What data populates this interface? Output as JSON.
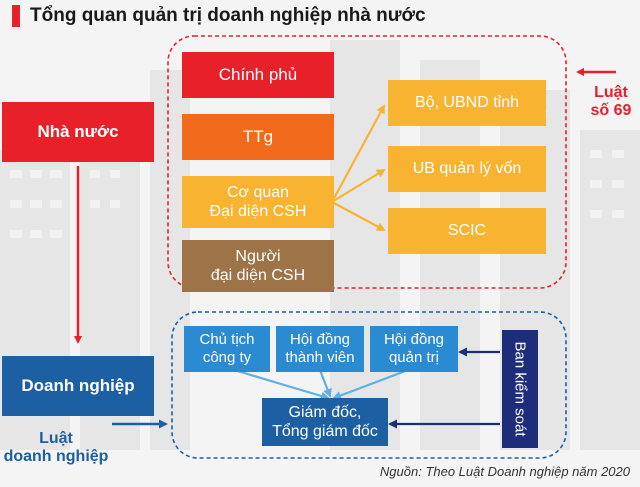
{
  "title": "Tổng quan quản trị doanh nghiệp nhà nước",
  "colors": {
    "red": "#e8202a",
    "orange_dark": "#f26a1b",
    "orange": "#f49a24",
    "yellow": "#f8b430",
    "brown": "#9e7348",
    "blue_dark": "#1d5fa3",
    "blue": "#2b8bd2",
    "navy": "#1e2d7a"
  },
  "state": {
    "label": "Nhà nước",
    "boxes": {
      "government": "Chính phủ",
      "prime_minister": "TTg",
      "owner_agency": "Cơ quan\nĐại diện CSH",
      "owner_representative": "Người\nđại diện CSH"
    },
    "agencies": [
      "Bộ, UBND tỉnh",
      "UB quản lý vốn",
      "SCIC"
    ],
    "law_label": "Luật\nsố 69"
  },
  "enterprise": {
    "label": "Doanh nghiệp",
    "boxes": {
      "chairman": "Chủ tịch\ncông ty",
      "members_council": "Hội đồng\nthành viên",
      "board": "Hội đồng\nquản trị",
      "director": "Giám đốc,\nTổng giám đốc",
      "supervisory": "Ban kiểm soát"
    },
    "law_label": "Luật\ndoanh nghiệp"
  },
  "source": "Nguồn: Theo Luật Doanh nghiệp năm 2020"
}
